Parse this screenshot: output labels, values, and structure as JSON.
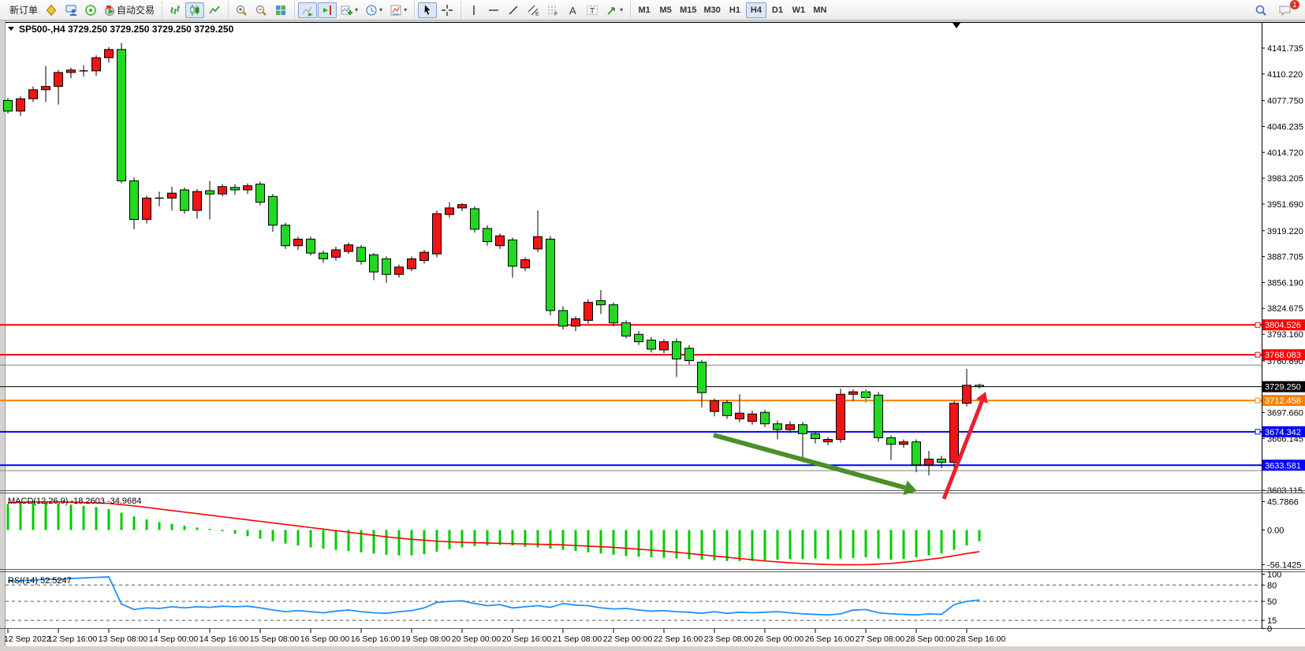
{
  "toolbar": {
    "new_order_label": "新订单",
    "autotrade_label": "自动交易",
    "timeframes": [
      "M1",
      "M5",
      "M15",
      "M30",
      "H1",
      "H4",
      "D1",
      "W1",
      "MN"
    ],
    "selected_timeframe": "H4",
    "notification_badge": "1"
  },
  "chart_header": {
    "symbol_period": "SP500-,H4",
    "ohlc": "3729.250 3729.250 3729.250 3729.250"
  },
  "chart_data": {
    "type": "candlestick",
    "symbol": "SP500-",
    "timeframe": "H4",
    "up_color": "#F01414",
    "down_color": "#22D822",
    "time_labels": [
      "12 Sep 2022",
      "12 Sep 16:00",
      "13 Sep 08:00",
      "14 Sep 00:00",
      "14 Sep 16:00",
      "15 Sep 08:00",
      "16 Sep 00:00",
      "16 Sep 16:00",
      "19 Sep 08:00",
      "20 Sep 00:00",
      "20 Sep 16:00",
      "21 Sep 08:00",
      "22 Sep 00:00",
      "22 Sep 16:00",
      "23 Sep 08:00",
      "26 Sep 00:00",
      "26 Sep 16:00",
      "27 Sep 08:00",
      "28 Sep 00:00",
      "28 Sep 16:00"
    ],
    "bars_per_label": 4,
    "price_axis_ticks": [
      "4141.735",
      "4110.220",
      "4077.750",
      "4046.235",
      "4014.720",
      "3983.205",
      "3951.690",
      "3919.220",
      "3887.705",
      "3856.190",
      "3824.675",
      "3793.160",
      "3760.690",
      "3697.660",
      "3666.145",
      "3603.115"
    ],
    "candles": [
      [
        4078,
        4081,
        4062,
        4065
      ],
      [
        4065,
        4083,
        4059,
        4080
      ],
      [
        4080,
        4095,
        4076,
        4091
      ],
      [
        4091,
        4120,
        4076,
        4095
      ],
      [
        4095,
        4115,
        4073,
        4112
      ],
      [
        4112,
        4118,
        4105,
        4115
      ],
      [
        4114,
        4121,
        4107,
        4114
      ],
      [
        4114,
        4133,
        4108,
        4130
      ],
      [
        4130,
        4143,
        4124,
        4140
      ],
      [
        4140,
        4148,
        3977,
        3980
      ],
      [
        3980,
        3984,
        3921,
        3933
      ],
      [
        3933,
        3962,
        3928,
        3959
      ],
      [
        3959,
        3967,
        3949,
        3959
      ],
      [
        3959,
        3973,
        3944,
        3965
      ],
      [
        3969,
        3972,
        3940,
        3944
      ],
      [
        3944,
        3970,
        3934,
        3967
      ],
      [
        3968,
        3980,
        3933,
        3964
      ],
      [
        3964,
        3976,
        3961,
        3973
      ],
      [
        3972,
        3976,
        3963,
        3969
      ],
      [
        3969,
        3977,
        3964,
        3974
      ],
      [
        3976,
        3979,
        3950,
        3954
      ],
      [
        3961,
        3964,
        3918,
        3926
      ],
      [
        3926,
        3929,
        3897,
        3901
      ],
      [
        3901,
        3912,
        3896,
        3909
      ],
      [
        3909,
        3912,
        3889,
        3892
      ],
      [
        3892,
        3895,
        3880,
        3885
      ],
      [
        3887,
        3900,
        3883,
        3896
      ],
      [
        3894,
        3905,
        3891,
        3902
      ],
      [
        3899,
        3902,
        3878,
        3882
      ],
      [
        3890,
        3892,
        3859,
        3869
      ],
      [
        3885,
        3888,
        3856,
        3866
      ],
      [
        3866,
        3878,
        3862,
        3875
      ],
      [
        3873,
        3888,
        3870,
        3885
      ],
      [
        3883,
        3896,
        3879,
        3893
      ],
      [
        3891,
        3944,
        3887,
        3940
      ],
      [
        3939,
        3954,
        3935,
        3947
      ],
      [
        3947,
        3953,
        3943,
        3951
      ],
      [
        3946,
        3949,
        3917,
        3921
      ],
      [
        3922,
        3926,
        3901,
        3906
      ],
      [
        3901,
        3916,
        3897,
        3913
      ],
      [
        3908,
        3911,
        3862,
        3876
      ],
      [
        3874,
        3887,
        3870,
        3884
      ],
      [
        3897,
        3944,
        3893,
        3912
      ],
      [
        3909,
        3913,
        3816,
        3822
      ],
      [
        3822,
        3827,
        3799,
        3803
      ],
      [
        3803,
        3815,
        3797,
        3812
      ],
      [
        3810,
        3836,
        3806,
        3832
      ],
      [
        3834,
        3847,
        3818,
        3829
      ],
      [
        3829,
        3832,
        3803,
        3807
      ],
      [
        3807,
        3810,
        3788,
        3791
      ],
      [
        3793,
        3797,
        3780,
        3784
      ],
      [
        3786,
        3790,
        3771,
        3775
      ],
      [
        3774,
        3787,
        3770,
        3784
      ],
      [
        3784,
        3788,
        3741,
        3763
      ],
      [
        3776,
        3780,
        3756,
        3761
      ],
      [
        3759,
        3762,
        3704,
        3722
      ],
      [
        3699,
        3715,
        3693,
        3712
      ],
      [
        3710,
        3713,
        3690,
        3694
      ],
      [
        3690,
        3720,
        3686,
        3697
      ],
      [
        3687,
        3700,
        3683,
        3696
      ],
      [
        3698,
        3701,
        3680,
        3684
      ],
      [
        3684,
        3688,
        3665,
        3677
      ],
      [
        3677,
        3687,
        3673,
        3683
      ],
      [
        3683,
        3686,
        3643,
        3672
      ],
      [
        3672,
        3675,
        3660,
        3666
      ],
      [
        3662,
        3668,
        3658,
        3665
      ],
      [
        3665,
        3727,
        3661,
        3720
      ],
      [
        3720,
        3726,
        3712,
        3723
      ],
      [
        3723,
        3726,
        3710,
        3716
      ],
      [
        3719,
        3723,
        3662,
        3667
      ],
      [
        3667,
        3670,
        3640,
        3659
      ],
      [
        3659,
        3665,
        3655,
        3662
      ],
      [
        3662,
        3665,
        3625,
        3634
      ],
      [
        3634,
        3651,
        3621,
        3641
      ],
      [
        3641,
        3645,
        3630,
        3637
      ],
      [
        3637,
        3712,
        3631,
        3709
      ],
      [
        3709,
        3751,
        3705,
        3731
      ],
      [
        3731,
        3733,
        3727,
        3729.25
      ]
    ],
    "horizontal_lines": [
      {
        "price": 3804.526,
        "label": "3804.526",
        "color": "#FF0000",
        "width": 2,
        "anchor": true
      },
      {
        "price": 3768.083,
        "label": "3768.083",
        "color": "#FF0000",
        "width": 2,
        "anchor": true
      },
      {
        "price": 3755.5,
        "label": "",
        "color": "#808080",
        "width": 1,
        "anchor": false
      },
      {
        "price": 3729.25,
        "label": "3729.250",
        "color": "#000000",
        "width": 1,
        "anchor": false
      },
      {
        "price": 3712.458,
        "label": "3712.458",
        "color": "#FF8000",
        "width": 2,
        "anchor": true
      },
      {
        "price": 3674.342,
        "label": "3674.342",
        "color": "#0000FF",
        "width": 2,
        "anchor": true
      },
      {
        "price": 3633.581,
        "label": "3633.581",
        "color": "#0000FF",
        "width": 2,
        "anchor": false
      },
      {
        "price": 3627.0,
        "label": "",
        "color": "#808080",
        "width": 1,
        "anchor": false
      }
    ],
    "cross_marker": {
      "bar": 68,
      "price": 3718,
      "color": "#32CD32"
    },
    "annotations": [
      {
        "type": "arrow",
        "color": "#4C8F27",
        "from": [
          905,
          552
        ],
        "to": [
          1163,
          623
        ],
        "width": 6
      },
      {
        "type": "arrow",
        "color": "#E8212E",
        "from": [
          1197,
          633
        ],
        "to": [
          1250,
          497
        ],
        "width": 5
      }
    ],
    "macd": {
      "label": "MACD(12,26,9)",
      "values_text": "-18.2603 -34.9684",
      "axis_ticks": [
        "45.7866",
        "0.00",
        "-56.1425"
      ],
      "hist_color": "#00CC00",
      "signal_color": "#FF0000",
      "histogram": [
        42,
        44,
        45.5,
        45,
        43,
        41,
        39,
        37,
        34,
        28,
        22,
        17,
        13,
        10,
        7,
        4,
        2,
        -2,
        -6,
        -10,
        -14,
        -18,
        -22,
        -25,
        -28,
        -30,
        -32,
        -34,
        -36,
        -38,
        -40,
        -41,
        -41,
        -39,
        -35,
        -31,
        -28,
        -26,
        -25,
        -24,
        -25,
        -27,
        -28,
        -30,
        -32,
        -34,
        -36,
        -38,
        -40,
        -42,
        -43,
        -44,
        -45,
        -46,
        -47,
        -48,
        -49,
        -50,
        -50,
        -50,
        -49,
        -48,
        -47,
        -47,
        -46,
        -47,
        -46,
        -45,
        -44,
        -46,
        -48,
        -47,
        -44,
        -41,
        -38,
        -32,
        -25,
        -18.26
      ],
      "signal": [
        44,
        44.8,
        45.5,
        45.5,
        45.5,
        45,
        44.5,
        43.8,
        43,
        41,
        39,
        36.5,
        34,
        31.5,
        29,
        26.5,
        24,
        21.5,
        19,
        16.5,
        14,
        11.5,
        9,
        6.5,
        4,
        1.5,
        -1,
        -3.5,
        -6,
        -8.5,
        -11,
        -13,
        -15,
        -16.5,
        -18,
        -19,
        -20,
        -20.5,
        -21,
        -21.5,
        -22,
        -22.5,
        -23,
        -23.5,
        -24,
        -25,
        -26,
        -27,
        -28,
        -29.5,
        -31,
        -32.5,
        -34,
        -36,
        -38,
        -40,
        -42,
        -44,
        -46,
        -48,
        -50,
        -51.5,
        -53,
        -54,
        -55,
        -55.8,
        -56.1,
        -56.1,
        -56,
        -55.2,
        -54,
        -52,
        -50,
        -47.5,
        -45,
        -41.5,
        -38,
        -35
      ]
    },
    "rsi": {
      "label": "RSI(14)",
      "value_text": "52.5247",
      "axis_ticks": [
        "100",
        "80",
        "50",
        "15",
        "0"
      ],
      "levels": [
        80,
        50,
        15
      ],
      "color": "#1E90FF",
      "values": [
        87,
        88,
        89,
        91,
        90,
        92,
        93,
        94,
        95,
        45,
        35,
        38,
        37,
        40,
        38,
        40,
        39,
        41,
        40,
        41,
        38,
        34,
        31,
        33,
        31,
        29,
        32,
        34,
        31,
        29,
        28,
        31,
        33,
        38,
        48,
        50,
        51,
        46,
        42,
        44,
        38,
        40,
        42,
        39,
        46,
        43,
        42,
        38,
        36,
        37,
        34,
        32,
        33,
        31,
        30,
        28,
        31,
        28,
        30,
        29,
        30,
        31,
        29,
        27,
        26,
        25,
        27,
        34,
        35,
        29,
        27,
        26,
        25,
        27,
        26,
        44,
        50,
        52.52
      ]
    }
  }
}
